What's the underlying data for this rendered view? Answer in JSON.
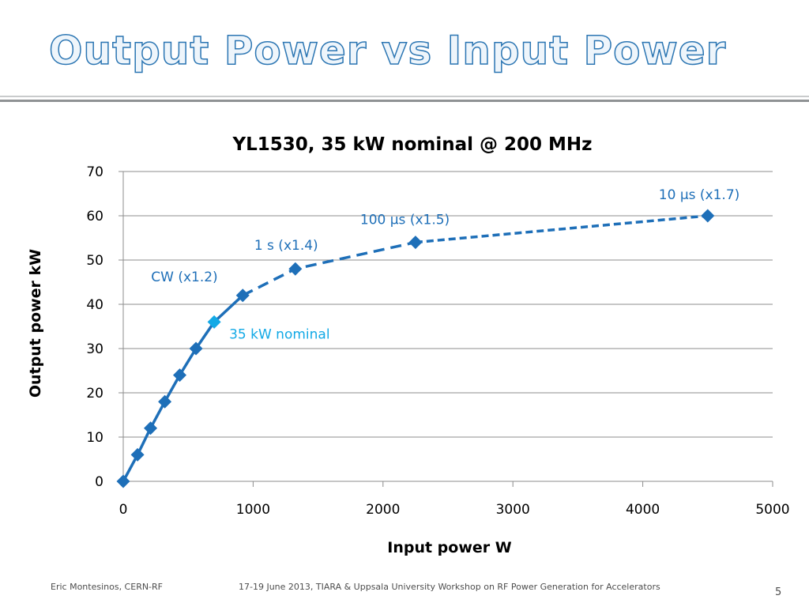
{
  "slide": {
    "title": "Output Power vs Input Power",
    "footer_left": "Eric Montesinos, CERN-RF",
    "footer_center": "17-19 June 2013, TIARA & Uppsala University Workshop on RF Power Generation for Accelerators",
    "page_number": "5"
  },
  "chart_data": {
    "type": "line",
    "title": "YL1530, 35 kW nominal @ 200 MHz",
    "xlabel": "Input power W",
    "ylabel": "Output power kW",
    "xlim": [
      0,
      5000
    ],
    "ylim": [
      0,
      70
    ],
    "x_ticks": [
      0,
      1000,
      2000,
      3000,
      4000,
      5000
    ],
    "y_ticks": [
      0,
      10,
      20,
      30,
      40,
      50,
      60,
      70
    ],
    "grid": "horizontal",
    "legend": "none",
    "colors": {
      "series": "#1e6fb8",
      "nominal": "#12a9e6"
    },
    "series": [
      {
        "style": "solid",
        "points": [
          {
            "x": 0,
            "y": 0
          },
          {
            "x": 110,
            "y": 6
          },
          {
            "x": 210,
            "y": 12
          },
          {
            "x": 320,
            "y": 18
          },
          {
            "x": 435,
            "y": 24
          },
          {
            "x": 560,
            "y": 30
          },
          {
            "x": 700,
            "y": 36
          },
          {
            "x": 920,
            "y": 42
          }
        ]
      },
      {
        "style": "long-dash",
        "points": [
          {
            "x": 920,
            "y": 42
          },
          {
            "x": 1325,
            "y": 48
          },
          {
            "x": 2250,
            "y": 54
          }
        ]
      },
      {
        "style": "short-dash",
        "points": [
          {
            "x": 2250,
            "y": 54
          },
          {
            "x": 4500,
            "y": 60
          }
        ]
      }
    ],
    "annotations": [
      {
        "text": "CW (x1.2)",
        "x": 920,
        "y": 42,
        "color": "#1e6fb8"
      },
      {
        "text": "35 kW nominal",
        "x": 700,
        "y": 36,
        "color": "#12a9e6"
      },
      {
        "text": "1 s (x1.4)",
        "x": 1325,
        "y": 48,
        "color": "#1e6fb8"
      },
      {
        "text": "100 µs (x1.5)",
        "x": 2250,
        "y": 54,
        "color": "#1e6fb8"
      },
      {
        "text": "10 µs (x1.7)",
        "x": 4500,
        "y": 60,
        "color": "#1e6fb8"
      }
    ]
  }
}
